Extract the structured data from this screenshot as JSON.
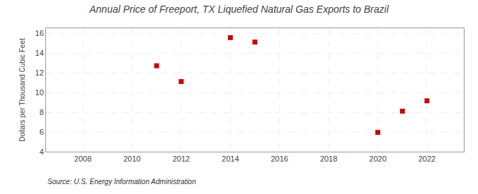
{
  "chart_data": {
    "type": "scatter",
    "title": "Annual Price of Freeport, TX Liquefied Natural Gas Exports to Brazil",
    "ylabel": "Dollars per Thousand Cubic Feet",
    "annotations": [
      "Source: U.S. Energy Information Administration"
    ],
    "x": [
      2011,
      2012,
      2014,
      2015,
      2020,
      2021,
      2022
    ],
    "values": [
      12.7,
      11.1,
      15.55,
      15.1,
      5.95,
      8.1,
      9.15
    ],
    "color": "#cc0000",
    "marker": "square",
    "xlim": [
      2006.5,
      2023.5
    ],
    "ylim": [
      4,
      16.5
    ],
    "xticks": [
      2008,
      2010,
      2012,
      2014,
      2016,
      2018,
      2020,
      2022
    ],
    "yticks": [
      4,
      6,
      8,
      10,
      12,
      14,
      16
    ],
    "grid": true
  }
}
